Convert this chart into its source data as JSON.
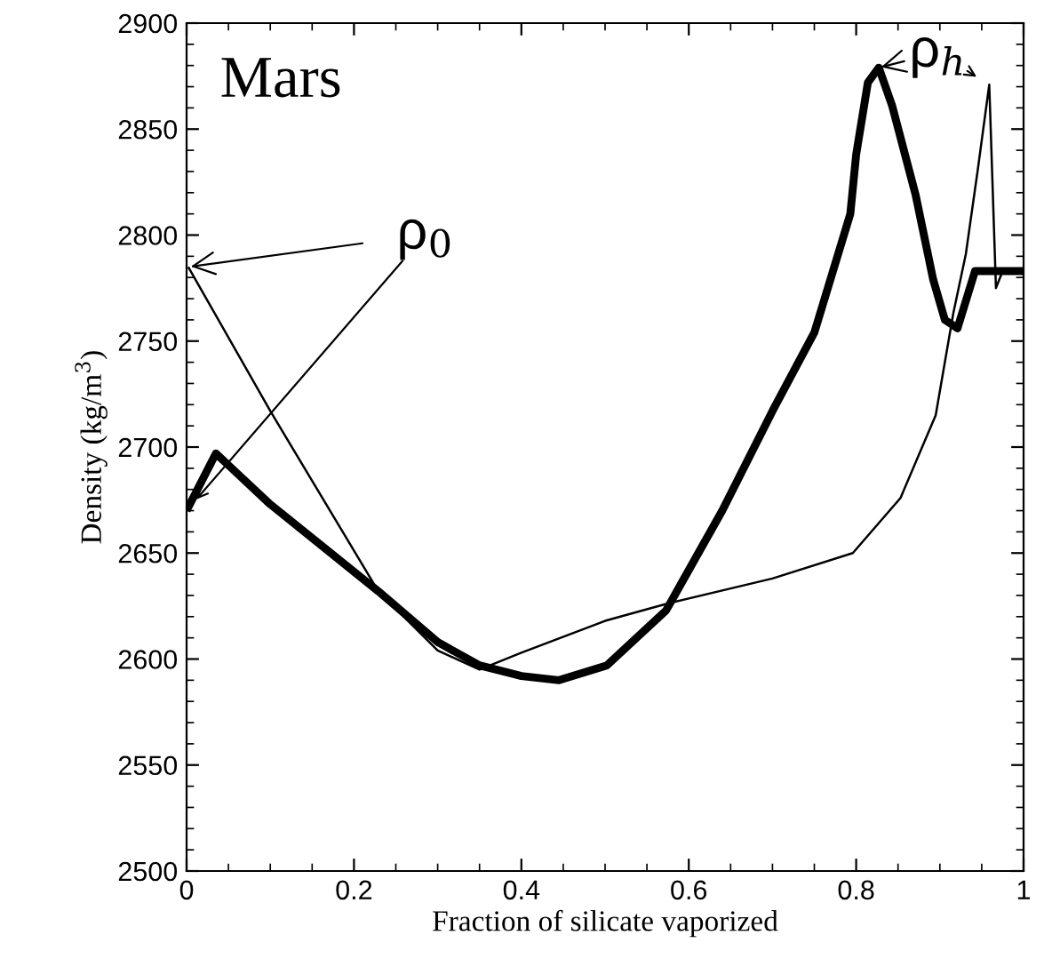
{
  "chart_data": {
    "type": "line",
    "xlabel": "Fraction of silicate vaporized",
    "ylabel": "Density (kg/m$^{3}$)",
    "xlim": [
      0,
      1
    ],
    "ylim": [
      2500,
      2900
    ],
    "xticks": [
      0,
      0.2,
      0.4,
      0.6,
      0.8,
      1
    ],
    "yticks": [
      2500,
      2550,
      2600,
      2650,
      2700,
      2750,
      2800,
      2850,
      2900
    ],
    "grid": false,
    "legend": false,
    "marker": "none",
    "line_style": "solid",
    "series": [
      {
        "color": "#000000",
        "x": [
          0.0,
          0.035,
          0.1,
          0.229,
          0.3,
          0.35,
          0.4,
          0.445,
          0.502,
          0.573,
          0.64,
          0.7,
          0.75,
          0.793,
          0.8,
          0.814,
          0.827,
          0.843,
          0.871,
          0.892,
          0.906,
          0.921,
          0.942,
          1.0
        ],
        "values": [
          2670,
          2697,
          2673,
          2632,
          2608,
          2597,
          2592,
          2590,
          2597,
          2623,
          2670,
          2717,
          2754,
          2810,
          2838,
          2872,
          2879,
          2861,
          2819,
          2779,
          2760,
          2756,
          2783,
          2783
        ]
      },
      {
        "color": "#000000",
        "x": [
          0.002,
          0.1,
          0.229,
          0.3,
          0.35,
          0.4,
          0.5,
          0.573,
          0.7,
          0.796,
          0.853,
          0.895,
          0.916,
          0.931,
          0.945,
          0.959,
          0.967,
          0.975,
          1.0
        ],
        "values": [
          2785,
          2717,
          2632,
          2604,
          2595,
          2603,
          2618,
          2626,
          2638,
          2650,
          2676,
          2715,
          2763,
          2791,
          2830,
          2871,
          2775,
          2783,
          2783
        ]
      }
    ],
    "annotations": [
      "Mars",
      {
        "text": "ρ$_{0}$",
        "x": 0.002,
        "y": 2785
      },
      {
        "text": "ρ$_{h}$",
        "x": 0.827,
        "y": 2879
      }
    ]
  }
}
